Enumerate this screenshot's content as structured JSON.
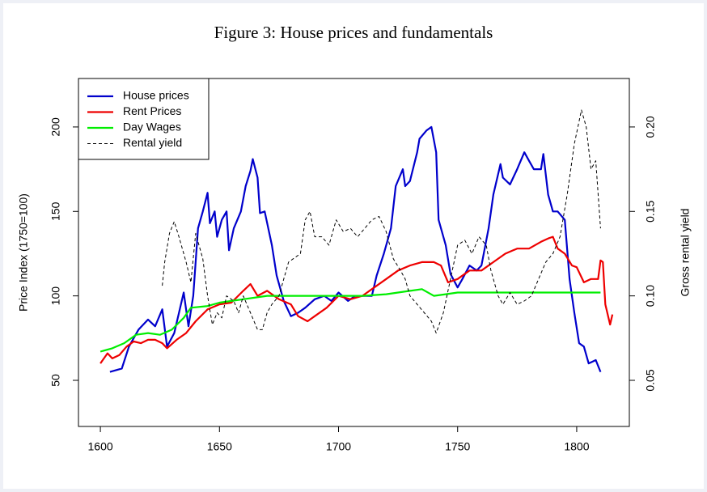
{
  "chart_data": {
    "type": "line",
    "title": "Figure 3: House prices and fundamentals",
    "y_label": "Price Index (1750=100)",
    "y2_label": "Gross rental yield",
    "xlim": [
      1590.8,
      1822.1
    ],
    "xticks": [
      1600,
      1650,
      1700,
      1750,
      1800
    ],
    "ylim": [
      22.7,
      228.7
    ],
    "yticks": [
      50,
      100,
      150,
      200
    ],
    "y2lim": [
      0.0227,
      0.2287
    ],
    "y2ticks": [
      {
        "value": 0.05,
        "label": "0.05"
      },
      {
        "value": 0.1,
        "label": "0.10"
      },
      {
        "value": 0.15,
        "label": "0.15"
      },
      {
        "value": 0.2,
        "label": "0.20"
      }
    ],
    "legend": "top-left",
    "series": [
      {
        "name": "House prices",
        "color": "#0000cc",
        "dashed": false,
        "x": [
          1604,
          1609,
          1612,
          1616,
          1620,
          1623,
          1626,
          1628,
          1631,
          1635,
          1637,
          1639,
          1641,
          1643,
          1645,
          1646,
          1648,
          1649,
          1651,
          1653,
          1654,
          1656,
          1659,
          1661,
          1663,
          1664,
          1666,
          1667,
          1669,
          1672,
          1674,
          1677,
          1680,
          1683,
          1686,
          1690,
          1694,
          1697,
          1700,
          1704,
          1707,
          1711,
          1714,
          1716,
          1719,
          1722,
          1724,
          1727,
          1728,
          1730,
          1733,
          1734,
          1737,
          1739,
          1741,
          1742,
          1745,
          1747,
          1750,
          1752,
          1755,
          1758,
          1760,
          1763,
          1765,
          1768,
          1769,
          1772,
          1775,
          1778,
          1780,
          1782,
          1785,
          1786,
          1788,
          1790,
          1792,
          1795,
          1797,
          1799,
          1801,
          1803,
          1805,
          1808,
          1810
        ],
        "values": [
          55,
          57,
          70,
          80,
          86,
          82,
          92,
          70,
          78,
          102,
          82,
          100,
          140,
          150,
          161,
          143,
          150,
          135,
          145,
          150,
          127,
          140,
          150,
          165,
          174,
          181,
          170,
          149,
          150,
          130,
          112,
          97,
          88,
          90,
          93,
          98,
          100,
          97,
          102,
          97,
          100,
          100,
          100,
          112,
          125,
          140,
          165,
          175,
          165,
          168,
          185,
          193,
          198,
          200,
          185,
          145,
          130,
          113,
          105,
          110,
          118,
          115,
          118,
          140,
          160,
          178,
          170,
          166,
          175,
          185,
          180,
          175,
          175,
          184,
          160,
          150,
          150,
          145,
          110,
          90,
          72,
          70,
          60,
          62,
          55
        ]
      },
      {
        "name": "Rent Prices",
        "color": "#ee0000",
        "dashed": false,
        "x": [
          1600,
          1603,
          1605,
          1608,
          1611,
          1614,
          1617,
          1620,
          1623,
          1626,
          1628,
          1632,
          1636,
          1640,
          1645,
          1650,
          1655,
          1660,
          1663,
          1666,
          1670,
          1675,
          1680,
          1683,
          1687,
          1690,
          1695,
          1700,
          1705,
          1710,
          1715,
          1720,
          1725,
          1730,
          1735,
          1740,
          1743,
          1746,
          1750,
          1755,
          1760,
          1765,
          1770,
          1775,
          1780,
          1785,
          1788,
          1790,
          1792,
          1795,
          1798,
          1800,
          1803,
          1806,
          1809,
          1810,
          1811,
          1812,
          1814,
          1815
        ],
        "values": [
          60,
          66,
          63,
          65,
          70,
          73,
          72,
          74,
          74,
          72,
          69,
          74,
          78,
          85,
          92,
          95,
          96,
          103,
          107,
          100,
          103,
          98,
          95,
          88,
          85,
          88,
          93,
          100,
          98,
          100,
          105,
          110,
          115,
          118,
          120,
          120,
          118,
          108,
          110,
          115,
          115,
          120,
          125,
          128,
          128,
          132,
          134,
          135,
          128,
          125,
          118,
          117,
          108,
          110,
          110,
          121,
          120,
          95,
          83,
          89
        ]
      },
      {
        "name": "Day Wages",
        "color": "#00ee00",
        "dashed": false,
        "x": [
          1600,
          1605,
          1610,
          1615,
          1620,
          1625,
          1630,
          1635,
          1638,
          1645,
          1650,
          1655,
          1660,
          1670,
          1680,
          1690,
          1700,
          1710,
          1720,
          1730,
          1735,
          1740,
          1745,
          1750,
          1760,
          1770,
          1780,
          1790,
          1800,
          1810
        ],
        "values": [
          67,
          69,
          72,
          77,
          78,
          77,
          80,
          87,
          93,
          94,
          96,
          97,
          98,
          100,
          100,
          100,
          100,
          100,
          101,
          103,
          104,
          100,
          101,
          102,
          102,
          102,
          102,
          102,
          102,
          102
        ]
      },
      {
        "name": "Rental yield",
        "color": "#000000",
        "dashed": true,
        "axis": "y2",
        "x": [
          1626,
          1627,
          1629,
          1631,
          1633,
          1636,
          1638,
          1640,
          1643,
          1645,
          1647,
          1649,
          1651,
          1653,
          1656,
          1658,
          1660,
          1663,
          1666,
          1668,
          1670,
          1672,
          1675,
          1677,
          1679,
          1681,
          1684,
          1686,
          1688,
          1690,
          1693,
          1696,
          1699,
          1702,
          1705,
          1708,
          1711,
          1714,
          1717,
          1720,
          1723,
          1726,
          1728,
          1730,
          1733,
          1736,
          1739,
          1741,
          1744,
          1747,
          1750,
          1753,
          1756,
          1759,
          1762,
          1764,
          1767,
          1769,
          1772,
          1775,
          1778,
          1781,
          1784,
          1787,
          1790,
          1793,
          1796,
          1799,
          1802,
          1804,
          1806,
          1808,
          1810
        ],
        "values": [
          0.106,
          0.12,
          0.137,
          0.144,
          0.135,
          0.12,
          0.108,
          0.137,
          0.122,
          0.1,
          0.083,
          0.09,
          0.087,
          0.1,
          0.097,
          0.09,
          0.1,
          0.09,
          0.08,
          0.08,
          0.09,
          0.095,
          0.1,
          0.11,
          0.12,
          0.122,
          0.125,
          0.145,
          0.15,
          0.135,
          0.135,
          0.13,
          0.145,
          0.138,
          0.14,
          0.135,
          0.14,
          0.145,
          0.147,
          0.138,
          0.122,
          0.115,
          0.11,
          0.1,
          0.095,
          0.09,
          0.085,
          0.078,
          0.09,
          0.11,
          0.13,
          0.133,
          0.125,
          0.135,
          0.13,
          0.115,
          0.1,
          0.095,
          0.102,
          0.095,
          0.097,
          0.1,
          0.11,
          0.12,
          0.125,
          0.135,
          0.16,
          0.19,
          0.21,
          0.2,
          0.175,
          0.18,
          0.14
        ]
      }
    ]
  }
}
